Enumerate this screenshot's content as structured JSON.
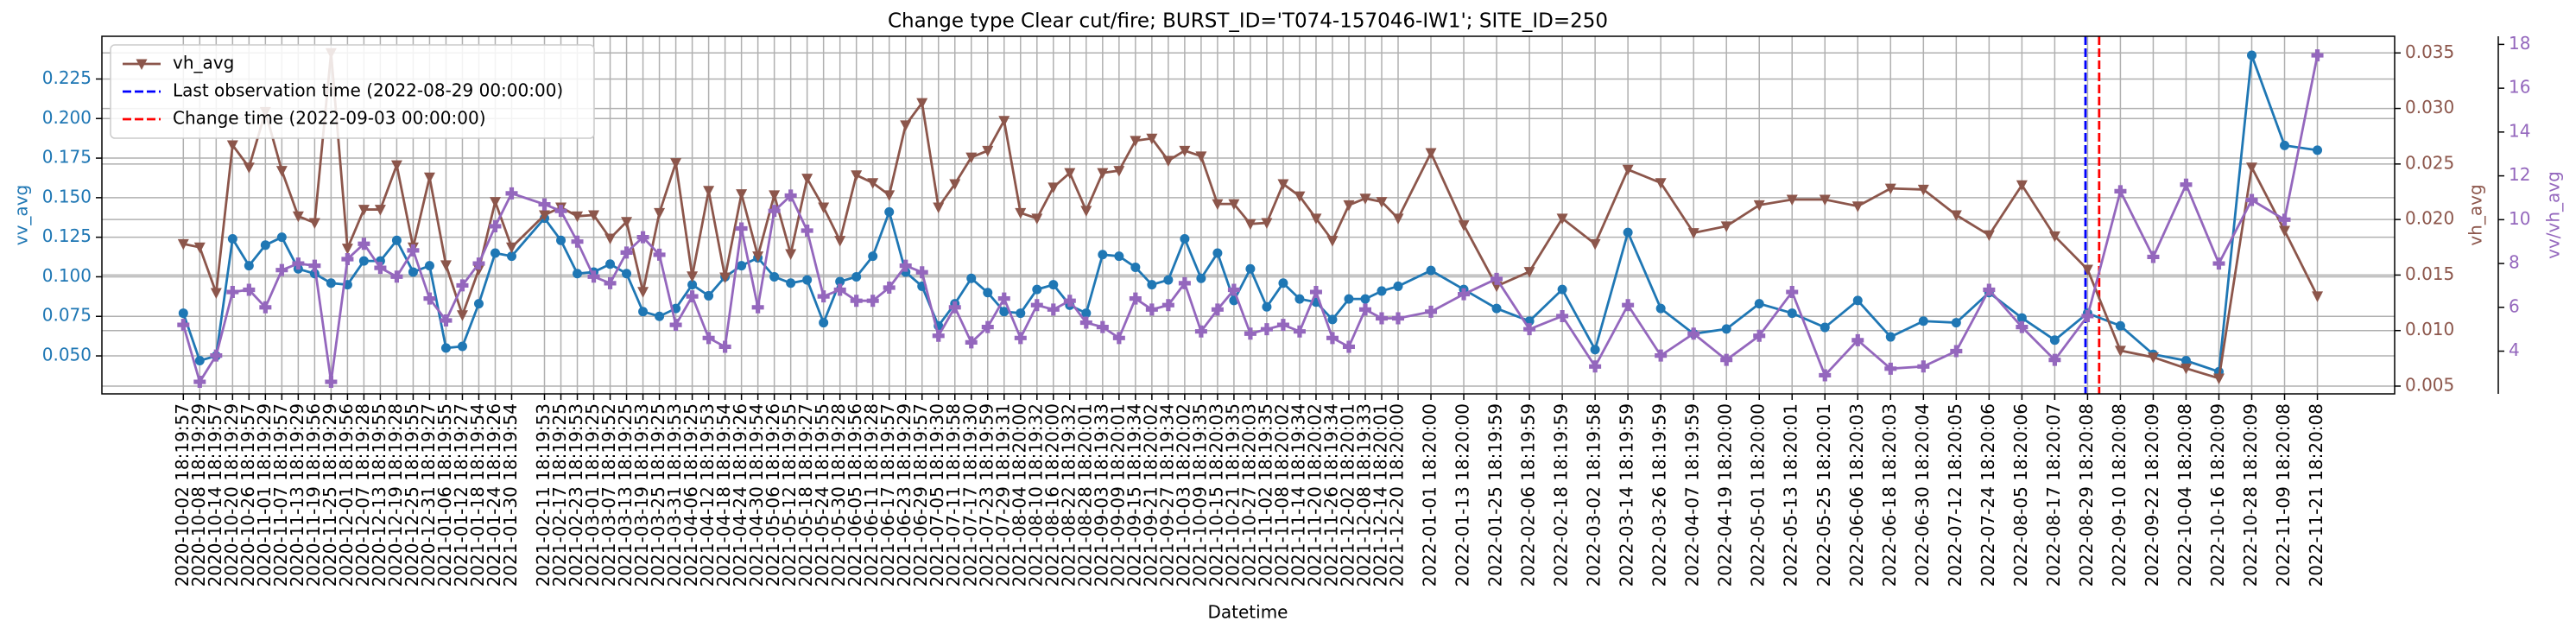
{
  "chart_data": {
    "type": "line",
    "title": "Change type Clear cut/fire; BURST_ID='T074-157046-IW1'; SITE_ID=250",
    "x_label": "Datetime",
    "y_label": "vv_avg",
    "y2_label": "vh_avg",
    "y3_label": "vv/vh_avg",
    "x": [
      "2020-10-02 18:19:57",
      "2020-10-08 18:19:29",
      "2020-10-14 18:19:57",
      "2020-10-20 18:19:29",
      "2020-10-26 18:19:57",
      "2020-11-01 18:19:29",
      "2020-11-07 18:19:57",
      "2020-11-13 18:19:29",
      "2020-11-19 18:19:56",
      "2020-11-25 18:19:29",
      "2020-12-01 18:19:56",
      "2020-12-07 18:19:28",
      "2020-12-13 18:19:55",
      "2020-12-19 18:19:28",
      "2020-12-25 18:19:55",
      "2020-12-31 18:19:27",
      "2021-01-06 18:19:55",
      "2021-01-12 18:19:27",
      "2021-01-18 18:19:54",
      "2021-01-24 18:19:26",
      "2021-01-30 18:19:54",
      "2021-02-11 18:19:53",
      "2021-02-17 18:19:25",
      "2021-02-23 18:19:53",
      "2021-03-01 18:19:25",
      "2021-03-07 18:19:52",
      "2021-03-13 18:19:25",
      "2021-03-19 18:19:53",
      "2021-03-25 18:19:25",
      "2021-03-31 18:19:53",
      "2021-04-06 18:19:25",
      "2021-04-12 18:19:53",
      "2021-04-18 18:19:54",
      "2021-04-24 18:19:26",
      "2021-04-30 18:19:54",
      "2021-05-06 18:19:26",
      "2021-05-12 18:19:55",
      "2021-05-18 18:19:27",
      "2021-05-24 18:19:55",
      "2021-05-30 18:19:28",
      "2021-06-05 18:19:56",
      "2021-06-11 18:19:28",
      "2021-06-17 18:19:57",
      "2021-06-23 18:19:29",
      "2021-06-29 18:19:57",
      "2021-07-05 18:19:30",
      "2021-07-11 18:19:58",
      "2021-07-17 18:19:30",
      "2021-07-23 18:19:59",
      "2021-07-29 18:19:31",
      "2021-08-04 18:20:00",
      "2021-08-10 18:19:32",
      "2021-08-16 18:20:00",
      "2021-08-22 18:19:32",
      "2021-08-28 18:20:01",
      "2021-09-03 18:19:33",
      "2021-09-09 18:20:01",
      "2021-09-15 18:19:34",
      "2021-09-21 18:20:02",
      "2021-09-27 18:19:34",
      "2021-10-03 18:20:02",
      "2021-10-09 18:19:35",
      "2021-10-15 18:20:03",
      "2021-10-21 18:19:35",
      "2021-10-27 18:20:03",
      "2021-11-02 18:19:35",
      "2021-11-08 18:20:02",
      "2021-11-14 18:19:34",
      "2021-11-20 18:20:02",
      "2021-11-26 18:19:34",
      "2021-12-02 18:20:01",
      "2021-12-08 18:19:33",
      "2021-12-14 18:20:01",
      "2021-12-20 18:20:00",
      "2022-01-01 18:20:00",
      "2022-01-13 18:20:00",
      "2022-01-25 18:19:59",
      "2022-02-06 18:19:59",
      "2022-02-18 18:19:59",
      "2022-03-02 18:19:58",
      "2022-03-14 18:19:59",
      "2022-03-26 18:19:59",
      "2022-04-07 18:19:59",
      "2022-04-19 18:20:00",
      "2022-05-01 18:20:00",
      "2022-05-13 18:20:01",
      "2022-05-25 18:20:01",
      "2022-06-06 18:20:03",
      "2022-06-18 18:20:03",
      "2022-06-30 18:20:04",
      "2022-07-12 18:20:05",
      "2022-07-24 18:20:06",
      "2022-08-05 18:20:06",
      "2022-08-17 18:20:07",
      "2022-08-29 18:20:08",
      "2022-09-10 18:20:08",
      "2022-09-22 18:20:09",
      "2022-10-04 18:20:08",
      "2022-10-16 18:20:09",
      "2022-10-28 18:20:09",
      "2022-11-09 18:20:08",
      "2022-11-21 18:20:08"
    ],
    "xlim": [
      "2020-09-03 00:00:00",
      "2022-12-20 00:00:00"
    ],
    "ylim": [
      0.026,
      0.252
    ],
    "yticks": [
      {
        "value": 0.05,
        "label": "0.050"
      },
      0.075,
      {
        "value": 0.1,
        "label": "0.100"
      },
      0.125,
      {
        "value": 0.15,
        "label": "0.150"
      },
      0.175,
      {
        "value": 0.2,
        "label": "0.200"
      },
      0.225
    ],
    "y2lim": [
      0.0043,
      0.0365
    ],
    "y2ticks": [
      0.005,
      {
        "value": 0.01,
        "label": "0.010"
      },
      0.015,
      {
        "value": 0.02,
        "label": "0.020"
      },
      0.025,
      {
        "value": 0.03,
        "label": "0.030"
      },
      0.035
    ],
    "y3lim": [
      2.05,
      18.37
    ],
    "y3ticks": [
      4,
      6,
      8,
      10,
      12,
      14,
      16,
      18
    ],
    "grid": true,
    "legend_loc": "upper left",
    "series": [
      {
        "name": "vv_avg",
        "color": "#1f77b4",
        "marker": "circle",
        "axis": "y",
        "in_legend": false,
        "values": [
          0.077,
          0.047,
          0.05,
          0.124,
          0.107,
          0.12,
          0.125,
          0.105,
          0.102,
          0.096,
          0.095,
          0.11,
          0.11,
          0.123,
          0.103,
          0.107,
          0.055,
          0.056,
          0.083,
          0.115,
          0.113,
          0.137,
          0.123,
          0.102,
          0.103,
          0.108,
          0.102,
          0.078,
          0.075,
          0.08,
          0.095,
          0.088,
          0.1,
          0.107,
          0.112,
          0.1,
          0.096,
          0.098,
          0.071,
          0.097,
          0.1,
          0.113,
          0.141,
          0.103,
          0.094,
          0.069,
          0.083,
          0.099,
          0.09,
          0.078,
          0.077,
          0.092,
          0.095,
          0.082,
          0.077,
          0.114,
          0.113,
          0.106,
          0.095,
          0.098,
          0.124,
          0.099,
          0.115,
          0.085,
          0.105,
          0.081,
          0.096,
          0.086,
          0.084,
          0.073,
          0.086,
          0.086,
          0.091,
          0.094,
          0.104,
          0.092,
          0.08,
          0.072,
          0.092,
          0.054,
          0.128,
          0.08,
          0.064,
          0.067,
          0.083,
          0.077,
          0.068,
          0.085,
          0.062,
          0.072,
          0.071,
          0.09,
          0.074,
          0.06,
          0.077,
          0.069,
          0.051,
          0.047,
          0.04,
          0.24,
          0.183,
          0.18
        ]
      },
      {
        "name": "vh_avg",
        "color": "#8c564b",
        "marker": "triangle-down",
        "axis": "y2",
        "in_legend": true,
        "values": [
          0.0178,
          0.0175,
          0.0134,
          0.0267,
          0.0247,
          0.0297,
          0.0244,
          0.0203,
          0.0197,
          0.035,
          0.0174,
          0.0209,
          0.0209,
          0.0249,
          0.0175,
          0.0238,
          0.0159,
          0.0114,
          0.0155,
          0.0216,
          0.0175,
          0.0204,
          0.0211,
          0.0203,
          0.0204,
          0.0183,
          0.0198,
          0.0135,
          0.0206,
          0.0251,
          0.0149,
          0.0226,
          0.0148,
          0.0223,
          0.0167,
          0.0222,
          0.0169,
          0.0237,
          0.0211,
          0.0181,
          0.024,
          0.0233,
          0.0222,
          0.0285,
          0.0305,
          0.0211,
          0.0232,
          0.0256,
          0.0262,
          0.0289,
          0.0206,
          0.0201,
          0.0229,
          0.0242,
          0.0208,
          0.0242,
          0.0244,
          0.0271,
          0.0273,
          0.0253,
          0.0262,
          0.0257,
          0.0214,
          0.0214,
          0.0196,
          0.0197,
          0.0232,
          0.0221,
          0.0201,
          0.0181,
          0.0213,
          0.0219,
          0.0216,
          0.0201,
          0.026,
          0.0195,
          0.014,
          0.0153,
          0.0201,
          0.0178,
          0.0245,
          0.0233,
          0.0188,
          0.0194,
          0.0213,
          0.0218,
          0.0218,
          0.0212,
          0.0228,
          0.0227,
          0.0204,
          0.0186,
          0.0231,
          0.0185,
          0.0155,
          0.0082,
          0.0076,
          0.0066,
          0.0057,
          0.0247,
          0.019,
          0.0131
        ]
      },
      {
        "name": "vv/vh_avg",
        "color": "#9467bd",
        "marker": "plus",
        "axis": "y3",
        "in_legend": false,
        "values": [
          5.2,
          2.6,
          3.8,
          6.7,
          6.8,
          6,
          7.7,
          8,
          7.9,
          2.6,
          8.2,
          8.9,
          7.8,
          7.4,
          8.6,
          6.4,
          5.4,
          7,
          8,
          9.7,
          11.2,
          10.7,
          10.4,
          9,
          7.4,
          7.1,
          8.5,
          9.2,
          8.4,
          5.2,
          6.5,
          4.6,
          4.2,
          9.6,
          6,
          10.4,
          11.1,
          9.5,
          6.5,
          6.8,
          6.3,
          6.3,
          6.9,
          7.9,
          7.6,
          4.7,
          6,
          4.4,
          5.1,
          6.4,
          4.6,
          6.1,
          5.9,
          6.3,
          5.3,
          5.1,
          4.6,
          6.4,
          5.9,
          6.1,
          7.1,
          4.9,
          5.9,
          6.8,
          4.8,
          5,
          5.2,
          4.9,
          6.7,
          4.6,
          4.2,
          5.9,
          5.5,
          5.5,
          5.8,
          6.6,
          7.3,
          5,
          5.6,
          3.3,
          6.1,
          3.8,
          4.8,
          3.6,
          4.7,
          6.7,
          2.9,
          4.5,
          3.2,
          3.3,
          4,
          6.8,
          5.1,
          3.6,
          5.6,
          11.3,
          8.3,
          11.6,
          8,
          10.9,
          10,
          17.5
        ]
      }
    ],
    "vlines": [
      {
        "label": "Last observation time (2022-08-29 00:00:00)",
        "x": "2022-08-29 00:00:00",
        "color": "#0000ff"
      },
      {
        "label": "Change time (2022-09-03 00:00:00)",
        "x": "2022-09-03 00:00:00",
        "color": "#ff0000"
      }
    ]
  }
}
